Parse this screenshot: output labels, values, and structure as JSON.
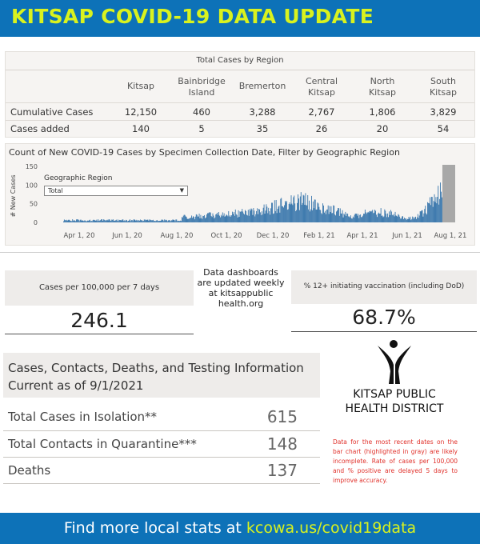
{
  "banner": {
    "title": "KITSAP COVID-19 DATA UPDATE"
  },
  "regions_table": {
    "title": "Total Cases by Region",
    "columns": [
      {
        "line1": "Kitsap",
        "line2": ""
      },
      {
        "line1": "Bainbridge",
        "line2": "Island"
      },
      {
        "line1": "Bremerton",
        "line2": ""
      },
      {
        "line1": "Central",
        "line2": "Kitsap"
      },
      {
        "line1": "North",
        "line2": "Kitsap"
      },
      {
        "line1": "South",
        "line2": "Kitsap"
      }
    ],
    "rows": [
      {
        "label": "Cumulative Cases",
        "values": [
          "12,150",
          "460",
          "3,288",
          "2,767",
          "1,806",
          "3,829"
        ]
      },
      {
        "label": "Cases added",
        "values": [
          "140",
          "5",
          "35",
          "26",
          "20",
          "54"
        ]
      }
    ]
  },
  "chart_data": {
    "type": "bar",
    "title": "Count of New COVID-19 Cases by Specimen Collection Date, Filter by Geographic Region",
    "ylabel": "# New Cases",
    "xlabel": "",
    "ylim": [
      0,
      150
    ],
    "yticks": [
      "150",
      "100",
      "50",
      "0"
    ],
    "xticks": [
      "Apr 1, 20",
      "Jun 1, 20",
      "Aug 1, 20",
      "Oct 1, 20",
      "Dec 1, 20",
      "Feb 1, 21",
      "Apr 1, 21",
      "Jun 1, 21",
      "Aug 1, 21"
    ],
    "filter_label": "Geographic Region",
    "filter_value": "Total",
    "bar_color": "#2e6fa8",
    "incomplete_color": "#a8a8a8"
  },
  "kpis": {
    "cases_per_100k": {
      "label": "Cases per 100,000 per 7 days",
      "value": "246.1"
    },
    "vaccination": {
      "label": "% 12+ initiating vaccination (including DoD)",
      "value": "68.7%"
    }
  },
  "notice": {
    "text": "Data dashboards are updated weekly at kitsappublic health.org"
  },
  "info": {
    "title_line1": "Cases, Contacts, Deaths, and Testing Information",
    "title_line2": "Current as of 9/1/2021",
    "rows": [
      {
        "label": "Total Cases in Isolation**",
        "value": "615"
      },
      {
        "label": "Total Contacts in Quarantine***",
        "value": "148"
      },
      {
        "label": "Deaths",
        "value": "137"
      }
    ]
  },
  "org": {
    "line1": "KITSAP PUBLIC",
    "line2": "HEALTH DISTRICT"
  },
  "disclaimer": "Data for the most recent dates on the bar chart (highlighted in gray) are likely incomplete. Rate of cases per 100,000 and % positive are delayed 5 days to improve accuracy.",
  "footer": {
    "text": "Find more local stats at ",
    "link": "kcowa.us/covid19data"
  },
  "colors": {
    "brand_blue": "#0d72b8",
    "accent_yellow": "#d9f21e",
    "alert_red": "#e0302a"
  }
}
